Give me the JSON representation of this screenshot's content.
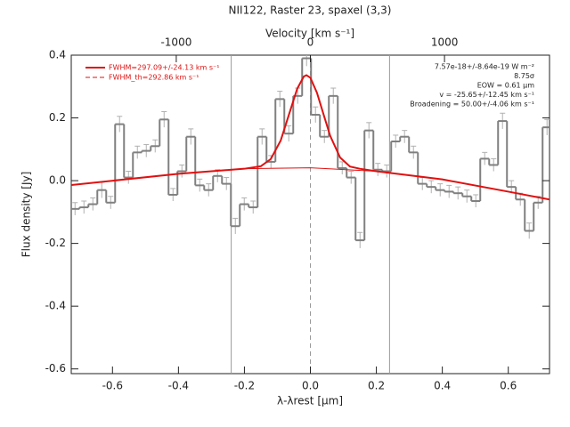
{
  "chart_data": {
    "type": "histogram",
    "title": "NII122, Raster 23, spaxel (3,3)",
    "xlabel": "λ-λrest [μm]",
    "ylabel": "Flux density [Jy]",
    "x2label": "Velocity [km s⁻¹]",
    "xlim": [
      -0.725,
      0.725
    ],
    "ylim": [
      -0.615,
      0.4
    ],
    "x2lim": [
      -1783,
      1783
    ],
    "xticks": [
      -0.6,
      -0.4,
      -0.2,
      {
        "value": 0,
        "label": "0.0"
      },
      0.2,
      0.4,
      0.6
    ],
    "yticks": [
      -0.6,
      -0.4,
      -0.2,
      {
        "value": 0,
        "label": "0.0"
      },
      0.2,
      0.4
    ],
    "x2ticks": [
      -1000,
      0,
      1000
    ],
    "color": "#808080",
    "error_color": "#b0b0b0",
    "bins": [
      -0.727,
      -0.7,
      -0.673,
      -0.646,
      -0.619,
      -0.592,
      -0.565,
      -0.538,
      -0.511,
      -0.484,
      -0.457,
      -0.43,
      -0.403,
      -0.376,
      -0.349,
      -0.322,
      -0.295,
      -0.268,
      -0.241,
      -0.214,
      -0.187,
      -0.16,
      -0.133,
      -0.106,
      -0.079,
      -0.052,
      -0.025,
      0.002,
      0.029,
      0.056,
      0.083,
      0.11,
      0.137,
      0.164,
      0.191,
      0.218,
      0.245,
      0.272,
      0.299,
      0.326,
      0.353,
      0.38,
      0.407,
      0.434,
      0.461,
      0.488,
      0.515,
      0.542,
      0.569,
      0.596,
      0.623,
      0.65,
      0.677,
      0.704,
      0.731
    ],
    "values": [
      -0.09,
      -0.085,
      -0.075,
      -0.03,
      -0.07,
      0.18,
      0.01,
      0.09,
      0.095,
      0.11,
      0.195,
      -0.045,
      0.03,
      0.14,
      -0.015,
      -0.03,
      0.015,
      -0.01,
      -0.145,
      -0.075,
      -0.085,
      0.14,
      0.06,
      0.26,
      0.15,
      0.27,
      0.39,
      0.21,
      0.14,
      0.27,
      0.04,
      0.01,
      -0.19,
      0.16,
      0.035,
      0.03,
      0.125,
      0.14,
      0.09,
      -0.01,
      -0.02,
      -0.03,
      -0.035,
      -0.04,
      -0.05,
      -0.065,
      0.07,
      0.05,
      0.19,
      -0.02,
      -0.06,
      -0.16,
      -0.07,
      0.17
    ],
    "errors": [
      0.02,
      0.02,
      0.02,
      0.025,
      0.02,
      0.025,
      0.02,
      0.02,
      0.02,
      0.02,
      0.025,
      0.02,
      0.02,
      0.025,
      0.02,
      0.02,
      0.02,
      0.02,
      0.025,
      0.02,
      0.02,
      0.025,
      0.02,
      0.025,
      0.025,
      0.025,
      0.025,
      0.025,
      0.02,
      0.025,
      0.02,
      0.02,
      0.025,
      0.025,
      0.02,
      0.02,
      0.02,
      0.02,
      0.02,
      0.02,
      0.02,
      0.02,
      0.02,
      0.02,
      0.02,
      0.02,
      0.02,
      0.02,
      0.025,
      0.02,
      0.02,
      0.025,
      0.02,
      0.025
    ],
    "series": [
      {
        "name": "FWHM=297.09+/-24.13 km s⁻¹",
        "color": "#e01010",
        "x": [
          -0.725,
          -0.4,
          -0.2,
          -0.15,
          -0.12,
          -0.09,
          -0.06,
          -0.04,
          -0.02,
          -0.012,
          0,
          0.02,
          0.04,
          0.06,
          0.09,
          0.12,
          0.15,
          0.2,
          0.4,
          0.6,
          0.725
        ],
        "values": [
          -0.014,
          0.022,
          0.038,
          0.046,
          0.069,
          0.128,
          0.227,
          0.293,
          0.332,
          0.336,
          0.328,
          0.28,
          0.211,
          0.143,
          0.074,
          0.045,
          0.038,
          0.03,
          0.004,
          -0.035,
          -0.06
        ]
      },
      {
        "name": "FWHM_th=292.86 km s⁻¹",
        "color": "#e01010",
        "dashed": true
      },
      {
        "color": "#e01010",
        "x": [
          -0.725,
          -0.6,
          -0.4,
          -0.2,
          0,
          0.2,
          0.4,
          0.6,
          0.725
        ],
        "values": [
          -0.014,
          0.0,
          0.022,
          0.038,
          0.041,
          0.03,
          0.004,
          -0.035,
          -0.06
        ]
      }
    ],
    "vlines": [
      -0.24,
      0.24
    ],
    "center_line": 0,
    "annotations": [
      "7.57e-18+/-8.64e-19 W m⁻²",
      "8.75σ",
      "EOW = 0.61 μm",
      "v = -25.65+/-12.45 km s⁻¹",
      "Broadening = 50.00+/-4.06 km s⁻¹"
    ]
  }
}
